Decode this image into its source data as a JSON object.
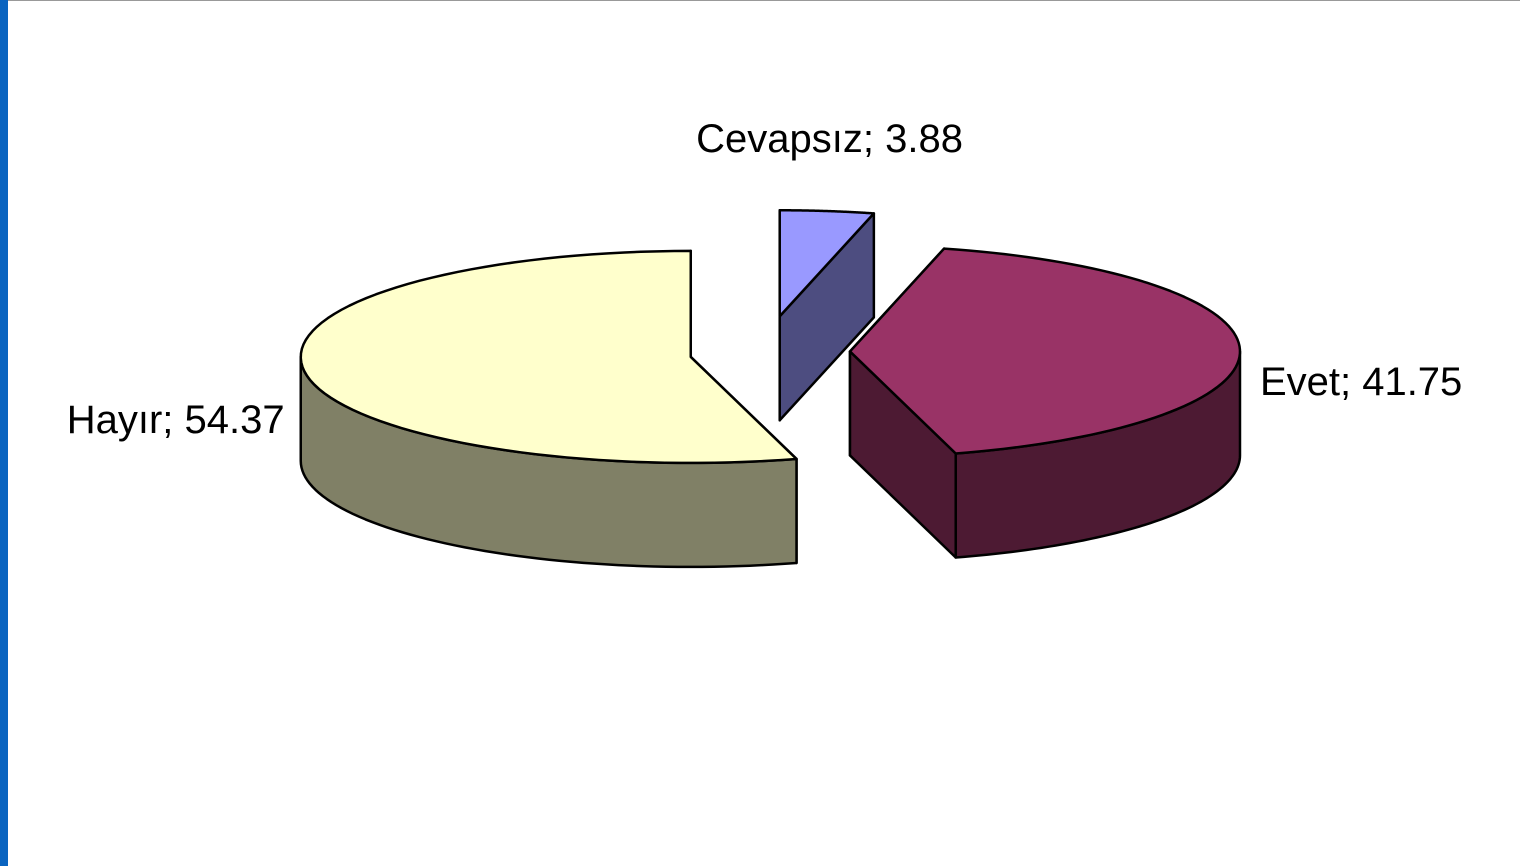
{
  "chart_data": {
    "type": "pie3d",
    "values": [
      3.88,
      41.75,
      54.37
    ],
    "value_labels": [
      "Cevapsız; 3.88",
      "Evet; 41.75",
      "Hayır; 54.37"
    ],
    "colors": [
      "#9999ff",
      "#993366",
      "#ffffcc"
    ],
    "side_colors": [
      "#4d4d80",
      "#4d1a33",
      "#808066"
    ]
  }
}
